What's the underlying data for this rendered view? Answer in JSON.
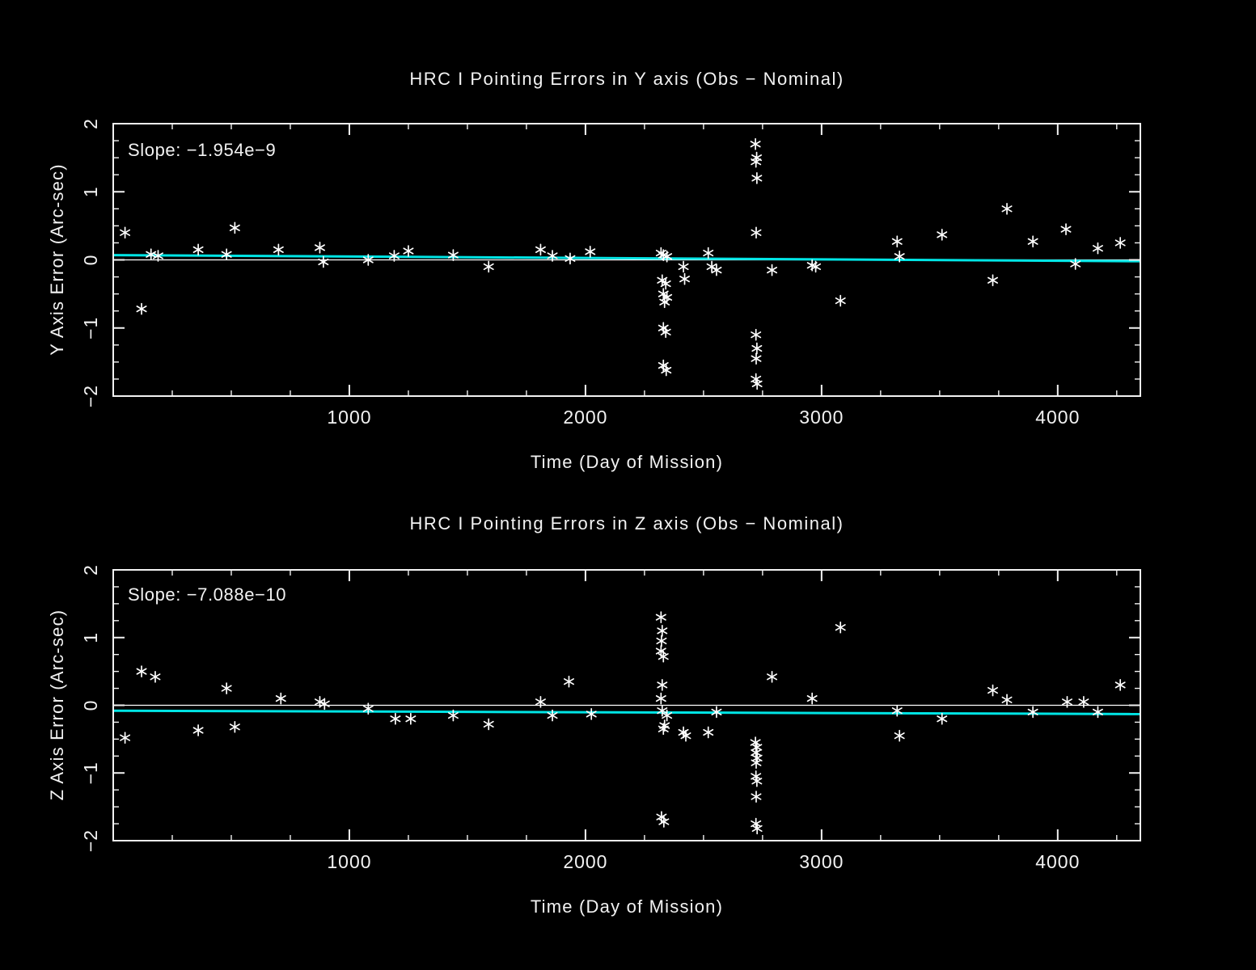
{
  "colors": {
    "background": "#000000",
    "foreground": "#f2f2f2",
    "accent_cyan": "#00e5e5"
  },
  "chart_data": [
    {
      "type": "scatter",
      "title": "HRC I Pointing Errors in Y axis (Obs − Nominal)",
      "slope_label": "Slope: −1.954e−9",
      "xlabel": "Time (Day of Mission)",
      "ylabel": "Y Axis Error (Arc-sec)",
      "xlim": [
        0,
        4350
      ],
      "ylim": [
        -2,
        2
      ],
      "xticks": [
        1000,
        2000,
        3000,
        4000
      ],
      "yticks": [
        -2,
        -1,
        0,
        1,
        2
      ],
      "x_minor_step": 250,
      "y_minor_step": 0.25,
      "marker": "asterisk",
      "point_color": "#ffffff",
      "fit_line_color": "#00e5e5",
      "zero_line_color": "#ffffff",
      "fit_line": {
        "x": [
          0,
          4350
        ],
        "y": [
          0.07,
          -0.02
        ]
      },
      "points": [
        [
          50,
          0.4
        ],
        [
          120,
          -0.72
        ],
        [
          160,
          0.08
        ],
        [
          190,
          0.06
        ],
        [
          360,
          0.15
        ],
        [
          480,
          0.08
        ],
        [
          515,
          0.47
        ],
        [
          700,
          0.15
        ],
        [
          875,
          0.18
        ],
        [
          890,
          -0.03
        ],
        [
          1080,
          0.0
        ],
        [
          1190,
          0.06
        ],
        [
          1250,
          0.13
        ],
        [
          1440,
          0.07
        ],
        [
          1590,
          -0.1
        ],
        [
          1810,
          0.15
        ],
        [
          1860,
          0.06
        ],
        [
          1935,
          0.02
        ],
        [
          2020,
          0.12
        ],
        [
          2320,
          0.1
        ],
        [
          2330,
          0.07
        ],
        [
          2345,
          0.05
        ],
        [
          2325,
          -0.3
        ],
        [
          2340,
          -0.35
        ],
        [
          2330,
          -0.5
        ],
        [
          2345,
          -0.55
        ],
        [
          2335,
          -0.62
        ],
        [
          2330,
          -1.0
        ],
        [
          2340,
          -1.06
        ],
        [
          2330,
          -1.55
        ],
        [
          2342,
          -1.62
        ],
        [
          2415,
          -0.1
        ],
        [
          2420,
          -0.28
        ],
        [
          2520,
          0.1
        ],
        [
          2535,
          -0.1
        ],
        [
          2555,
          -0.15
        ],
        [
          2720,
          1.7
        ],
        [
          2725,
          1.5
        ],
        [
          2722,
          1.44
        ],
        [
          2726,
          1.2
        ],
        [
          2723,
          0.4
        ],
        [
          2722,
          -1.1
        ],
        [
          2726,
          -1.3
        ],
        [
          2723,
          -1.45
        ],
        [
          2722,
          -1.75
        ],
        [
          2727,
          -1.82
        ],
        [
          2790,
          -0.15
        ],
        [
          2960,
          -0.08
        ],
        [
          2975,
          -0.1
        ],
        [
          3080,
          -0.6
        ],
        [
          3320,
          0.27
        ],
        [
          3330,
          0.05
        ],
        [
          3510,
          0.37
        ],
        [
          3725,
          -0.3
        ],
        [
          3785,
          0.75
        ],
        [
          3895,
          0.27
        ],
        [
          4035,
          0.45
        ],
        [
          4075,
          -0.06
        ],
        [
          4170,
          0.17
        ],
        [
          4265,
          0.25
        ]
      ]
    },
    {
      "type": "scatter",
      "title": "HRC I Pointing Errors in  Z axis (Obs − Nominal)",
      "slope_label": "Slope: −7.088e−10",
      "xlabel": "Time (Day of Mission)",
      "ylabel": "Z Axis Error (Arc-sec)",
      "xlim": [
        0,
        4350
      ],
      "ylim": [
        -2,
        2
      ],
      "xticks": [
        1000,
        2000,
        3000,
        4000
      ],
      "yticks": [
        -2,
        -1,
        0,
        1,
        2
      ],
      "x_minor_step": 250,
      "y_minor_step": 0.25,
      "marker": "asterisk",
      "point_color": "#ffffff",
      "fit_line_color": "#00e5e5",
      "zero_line_color": "#ffffff",
      "fit_line": {
        "x": [
          0,
          4350
        ],
        "y": [
          -0.08,
          -0.13
        ]
      },
      "points": [
        [
          50,
          -0.48
        ],
        [
          120,
          0.5
        ],
        [
          178,
          0.42
        ],
        [
          360,
          -0.37
        ],
        [
          480,
          0.25
        ],
        [
          515,
          -0.32
        ],
        [
          710,
          0.1
        ],
        [
          875,
          0.05
        ],
        [
          895,
          0.02
        ],
        [
          1080,
          -0.05
        ],
        [
          1195,
          -0.2
        ],
        [
          1260,
          -0.2
        ],
        [
          1440,
          -0.15
        ],
        [
          1590,
          -0.28
        ],
        [
          1810,
          0.05
        ],
        [
          1860,
          -0.15
        ],
        [
          1930,
          0.35
        ],
        [
          2025,
          -0.13
        ],
        [
          2320,
          1.3
        ],
        [
          2325,
          1.1
        ],
        [
          2322,
          0.95
        ],
        [
          2320,
          0.8
        ],
        [
          2330,
          0.72
        ],
        [
          2325,
          0.3
        ],
        [
          2320,
          0.1
        ],
        [
          2325,
          -0.08
        ],
        [
          2345,
          -0.15
        ],
        [
          2335,
          -0.3
        ],
        [
          2330,
          -0.35
        ],
        [
          2322,
          -1.65
        ],
        [
          2332,
          -1.72
        ],
        [
          2415,
          -0.4
        ],
        [
          2425,
          -0.45
        ],
        [
          2520,
          -0.4
        ],
        [
          2555,
          -0.1
        ],
        [
          2720,
          -0.55
        ],
        [
          2726,
          -0.62
        ],
        [
          2722,
          -0.7
        ],
        [
          2727,
          -0.78
        ],
        [
          2723,
          -0.85
        ],
        [
          2722,
          -1.05
        ],
        [
          2726,
          -1.12
        ],
        [
          2723,
          -1.35
        ],
        [
          2722,
          -1.75
        ],
        [
          2727,
          -1.82
        ],
        [
          2790,
          0.42
        ],
        [
          2960,
          0.1
        ],
        [
          3080,
          1.15
        ],
        [
          3320,
          -0.08
        ],
        [
          3330,
          -0.45
        ],
        [
          3510,
          -0.2
        ],
        [
          3725,
          0.22
        ],
        [
          3785,
          0.08
        ],
        [
          3895,
          -0.1
        ],
        [
          4040,
          0.05
        ],
        [
          4110,
          0.05
        ],
        [
          4170,
          -0.1
        ],
        [
          4265,
          0.3
        ]
      ]
    }
  ]
}
